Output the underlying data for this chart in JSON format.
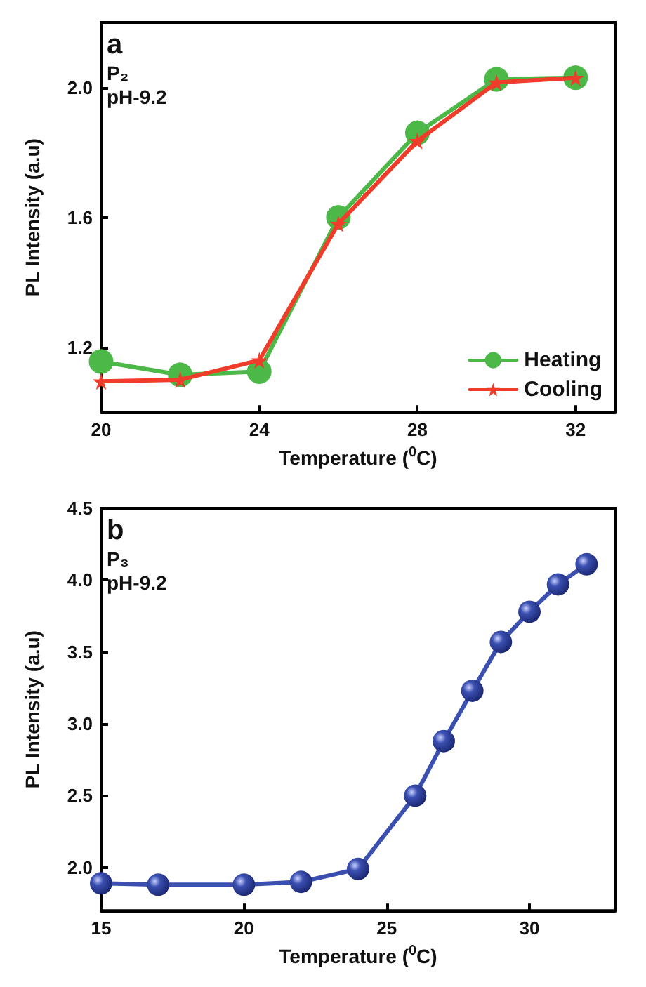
{
  "chart_data": [
    {
      "type": "line",
      "xlabel": "Temperature ($^{0}$C)",
      "ylabel": "PL Intensity (a.u)",
      "annotations": [
        "a",
        "P₂",
        "pH-9.2"
      ],
      "x": [
        20,
        22,
        24,
        26,
        28,
        30,
        32
      ],
      "series": [
        {
          "name": "Heating",
          "color": "#4cb848",
          "marker": "circle",
          "values": [
            1.156,
            1.115,
            1.125,
            1.6,
            1.86,
            2.025,
            2.03
          ]
        },
        {
          "name": "Cooling",
          "color": "#f03c2a",
          "marker": "star",
          "values": [
            1.095,
            1.1,
            1.16,
            1.58,
            1.835,
            2.015,
            2.03
          ]
        }
      ],
      "xlim": [
        20,
        33
      ],
      "xticks": [
        20,
        24,
        28,
        32
      ],
      "ylim": [
        1.0,
        2.2
      ],
      "yticks": [
        {
          "value": 1.2,
          "label": "1.2"
        },
        {
          "value": 1.6,
          "label": "1.6"
        },
        {
          "value": 2,
          "label": "2.0"
        }
      ],
      "legend": "bottom right",
      "grid": false
    },
    {
      "type": "line",
      "xlabel": "Temperature ($^{0}$C)",
      "ylabel": "PL Intensity (a.u)",
      "annotations": [
        "b",
        "P₃",
        "pH-9.2"
      ],
      "x": [
        15,
        17,
        20,
        22,
        24,
        26,
        27,
        28,
        29,
        30,
        31,
        32
      ],
      "series": [
        {
          "color": "#3a4fb0",
          "values": [
            1.89,
            1.88,
            1.88,
            1.9,
            1.99,
            2.5,
            2.88,
            3.23,
            3.57,
            3.78,
            3.97,
            4.11
          ]
        }
      ],
      "marker": "circle",
      "xlim": [
        15,
        33
      ],
      "xticks": [
        15,
        20,
        25,
        30
      ],
      "ylim": [
        1.7,
        4.5
      ],
      "yticks": [
        {
          "value": 2,
          "label": "2.0"
        },
        {
          "value": 2.5,
          "label": "2.5"
        },
        {
          "value": 3,
          "label": "3.0"
        },
        {
          "value": 3.5,
          "label": "3.5"
        },
        {
          "value": 4,
          "label": "4.0"
        },
        {
          "value": 4.5,
          "label": "4.5"
        }
      ],
      "legend": false,
      "grid": false
    }
  ]
}
